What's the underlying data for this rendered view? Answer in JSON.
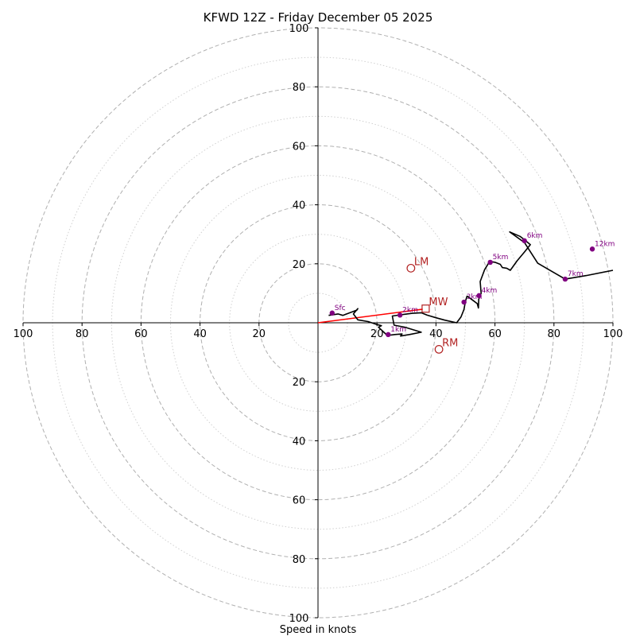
{
  "chart_data": {
    "type": "hodograph",
    "title": "KFWD 12Z - Friday December 05 2025",
    "xlabel": "Speed in knots",
    "range": [
      -100,
      100
    ],
    "ring_labels": [
      "100",
      "80",
      "60",
      "40",
      "20",
      "20",
      "40",
      "60",
      "80",
      "100"
    ],
    "ring_values": [
      -100,
      -80,
      -60,
      -40,
      -20,
      20,
      40,
      60,
      80,
      100
    ],
    "dashed_rings": [
      10,
      20,
      30,
      40,
      50,
      60,
      70,
      80,
      90,
      100
    ],
    "colors": {
      "trace": "#000000",
      "height": "#800080",
      "motion": "#b22222",
      "mean_wind_line": "#ff0000",
      "grid": "#b0b0b0",
      "grid_minor": "#d0d0d0"
    },
    "trace": [
      [
        3.6,
        2.5
      ],
      [
        6.8,
        3.0
      ],
      [
        8.4,
        2.5
      ],
      [
        10.8,
        3.4
      ],
      [
        13.2,
        4.3
      ],
      [
        13.5,
        4.8
      ],
      [
        12.0,
        3.0
      ],
      [
        13.5,
        1.0
      ],
      [
        17.0,
        0.4
      ],
      [
        20.0,
        -0.6
      ],
      [
        21.5,
        -1.0
      ],
      [
        20.5,
        -1.5
      ],
      [
        23.5,
        -4.3
      ],
      [
        26.0,
        -4.0
      ],
      [
        28.5,
        -3.8
      ],
      [
        28.0,
        -4.5
      ],
      [
        31.0,
        -4.0
      ],
      [
        35.0,
        -3.2
      ],
      [
        29.5,
        -1.5
      ],
      [
        25.8,
        -0.8
      ],
      [
        25.2,
        2.3
      ],
      [
        28.0,
        2.7
      ],
      [
        32.0,
        3.2
      ],
      [
        35.0,
        3.4
      ],
      [
        37.0,
        2.6
      ],
      [
        40.0,
        1.7
      ],
      [
        43.0,
        0.9
      ],
      [
        47.0,
        0.0
      ],
      [
        48.5,
        2.0
      ],
      [
        49.5,
        4.5
      ],
      [
        50.0,
        7.3
      ],
      [
        50.5,
        9.0
      ],
      [
        52.0,
        8.0
      ],
      [
        54.0,
        6.5
      ],
      [
        54.4,
        5.0
      ],
      [
        54.5,
        8.0
      ],
      [
        55.3,
        10.0
      ],
      [
        55.0,
        14.0
      ],
      [
        56.5,
        18.0
      ],
      [
        58.2,
        20.8
      ],
      [
        60.0,
        20.5
      ],
      [
        61.8,
        19.8
      ],
      [
        62.5,
        18.7
      ],
      [
        64.0,
        18.5
      ],
      [
        65.2,
        17.8
      ],
      [
        67.5,
        21.0
      ],
      [
        70.0,
        24.0
      ],
      [
        72.0,
        26.5
      ],
      [
        70.2,
        28.0
      ],
      [
        68.5,
        29.3
      ],
      [
        65.0,
        30.8
      ],
      [
        70.0,
        27.2
      ],
      [
        74.5,
        20.2
      ],
      [
        79.5,
        17.3
      ],
      [
        83.8,
        14.8
      ],
      [
        91.0,
        16.0
      ],
      [
        100.0,
        17.8
      ]
    ],
    "height_markers": [
      {
        "label": "Sfc",
        "u": 4.8,
        "v": 3.3
      },
      {
        "label": "1km",
        "u": 23.8,
        "v": -4.0
      },
      {
        "label": "2km",
        "u": 27.8,
        "v": 2.6
      },
      {
        "label": "3km",
        "u": 49.5,
        "v": 7.0
      },
      {
        "label": "4km",
        "u": 54.6,
        "v": 9.2
      },
      {
        "label": "5km",
        "u": 58.4,
        "v": 20.5
      },
      {
        "label": "6km",
        "u": 70.0,
        "v": 27.8
      },
      {
        "label": "7km",
        "u": 83.8,
        "v": 14.8
      },
      {
        "label": "12km",
        "u": 93.0,
        "v": 25.0
      }
    ],
    "storm_motion": [
      {
        "label": "LM",
        "u": 31.5,
        "v": 18.5,
        "marker": "circle"
      },
      {
        "label": "MW",
        "u": 36.5,
        "v": 4.8,
        "marker": "square"
      },
      {
        "label": "RM",
        "u": 41.0,
        "v": -9.0,
        "marker": "circle"
      }
    ],
    "mean_wind_vector": {
      "from": [
        0,
        0
      ],
      "to": [
        35.5,
        4.6
      ]
    }
  }
}
